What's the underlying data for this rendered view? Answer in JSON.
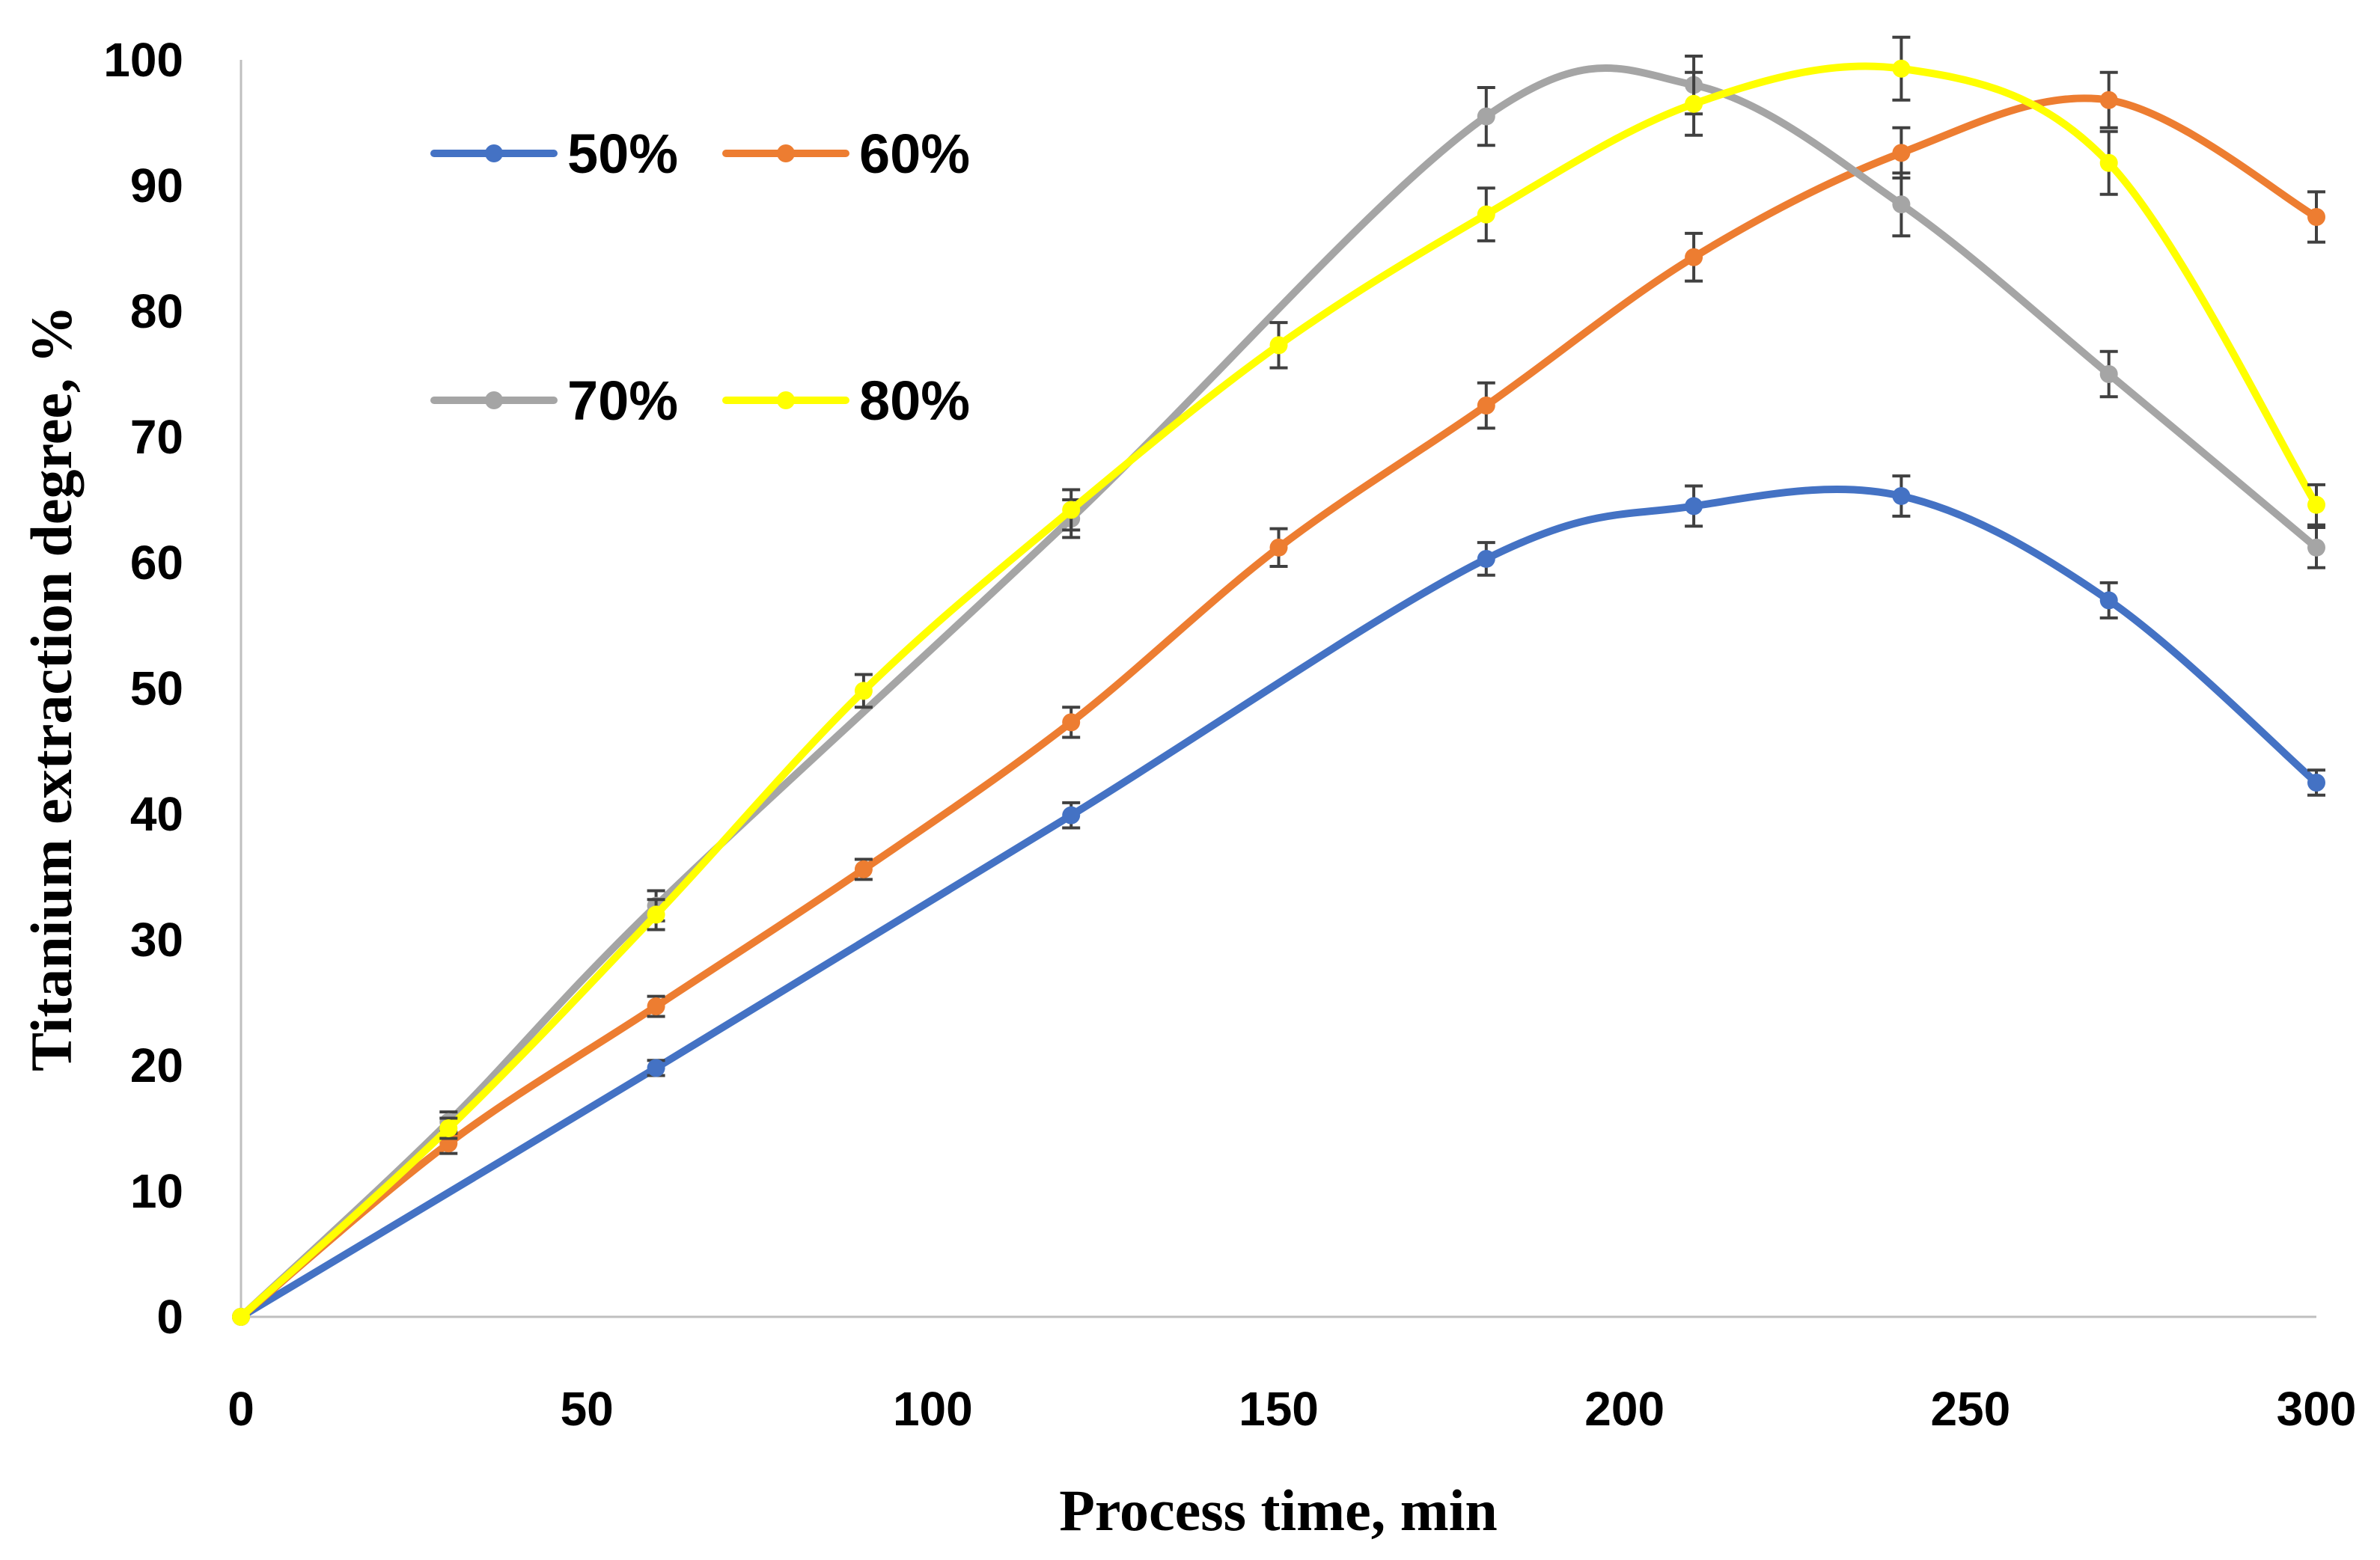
{
  "chart_data": {
    "type": "line",
    "xlabel": "Process time, min",
    "ylabel": "Titanium extraction degree, %",
    "xlim": [
      0,
      300
    ],
    "ylim": [
      0,
      100
    ],
    "xticks": [
      0,
      50,
      100,
      150,
      200,
      250,
      300
    ],
    "yticks": [
      0,
      10,
      20,
      30,
      40,
      50,
      60,
      70,
      80,
      90,
      100
    ],
    "grid": false,
    "legend": "top-left, two rows",
    "series": [
      {
        "name": "50%",
        "color": "#4472C4",
        "x": [
          0,
          60,
          120,
          180,
          210,
          240,
          270,
          300
        ],
        "values": [
          0,
          19.8,
          39.9,
          60.3,
          64.5,
          65.3,
          57.0,
          42.5
        ],
        "error": [
          0,
          0.6,
          1.0,
          1.3,
          1.6,
          1.6,
          1.4,
          1.0
        ]
      },
      {
        "name": "60%",
        "color": "#ED7D31",
        "x": [
          0,
          30,
          60,
          90,
          120,
          150,
          180,
          210,
          240,
          270,
          300
        ],
        "values": [
          0,
          13.8,
          24.7,
          35.6,
          47.3,
          61.2,
          72.5,
          84.3,
          92.6,
          96.8,
          87.5
        ],
        "error": [
          0,
          0.8,
          0.8,
          0.8,
          1.2,
          1.5,
          1.8,
          1.9,
          2.0,
          2.2,
          2.0
        ]
      },
      {
        "name": "70%",
        "color": "#A5A5A5",
        "x": [
          0,
          30,
          60,
          120,
          180,
          210,
          240,
          270,
          300
        ],
        "values": [
          0,
          15.5,
          32.7,
          63.5,
          95.5,
          98.0,
          88.5,
          75.0,
          61.2
        ],
        "error": [
          0,
          0.8,
          1.2,
          1.5,
          2.3,
          2.3,
          2.5,
          1.8,
          1.6
        ]
      },
      {
        "name": "80%",
        "color": "#FFFF00",
        "x": [
          0,
          30,
          60,
          90,
          120,
          150,
          180,
          210,
          240,
          270,
          300
        ],
        "values": [
          0,
          15.0,
          32.0,
          49.8,
          64.2,
          77.3,
          87.7,
          96.5,
          99.3,
          91.8,
          64.6
        ],
        "error": [
          0,
          0.8,
          1.2,
          1.3,
          1.6,
          1.8,
          2.1,
          2.5,
          2.5,
          2.5,
          1.6
        ]
      }
    ]
  }
}
